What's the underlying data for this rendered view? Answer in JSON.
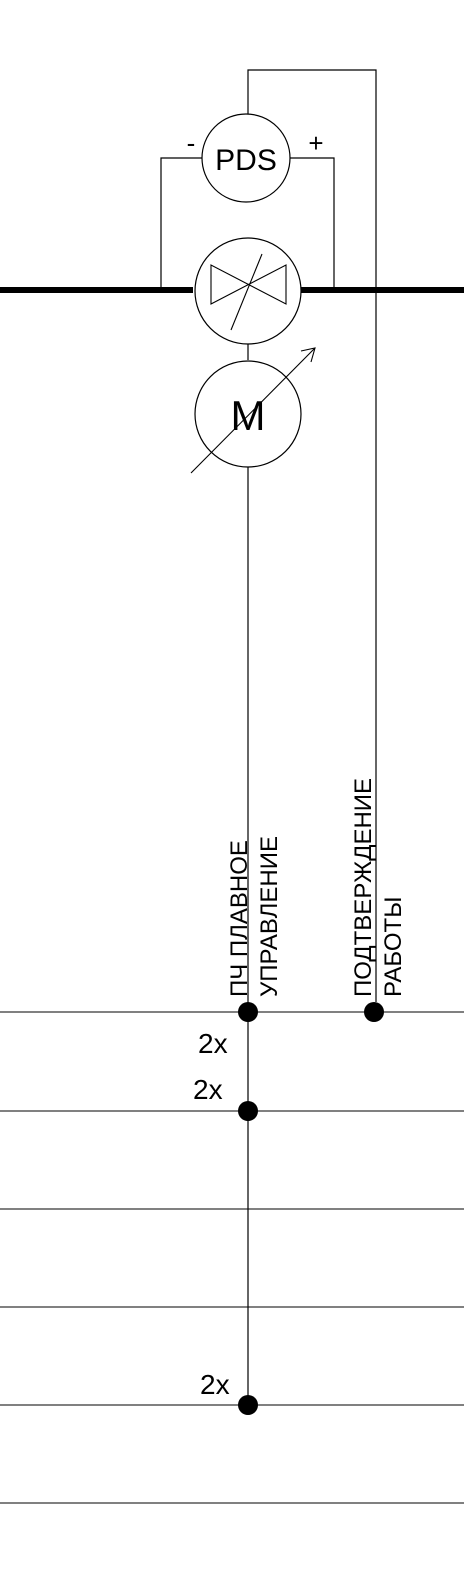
{
  "diagram": {
    "sensor": {
      "label": "PDS",
      "minus": "-",
      "plus": "+"
    },
    "motor": {
      "label": "M"
    },
    "signals": {
      "vfd_control": [
        "ПЧ ПЛАВНОЕ",
        "УПРАВЛЕНИЕ"
      ],
      "run_confirmation": [
        "ПОДТВЕРЖДЕНИЕ",
        "РАБОТЫ"
      ]
    },
    "multipliers": [
      "2x",
      "2x",
      "2x"
    ]
  }
}
